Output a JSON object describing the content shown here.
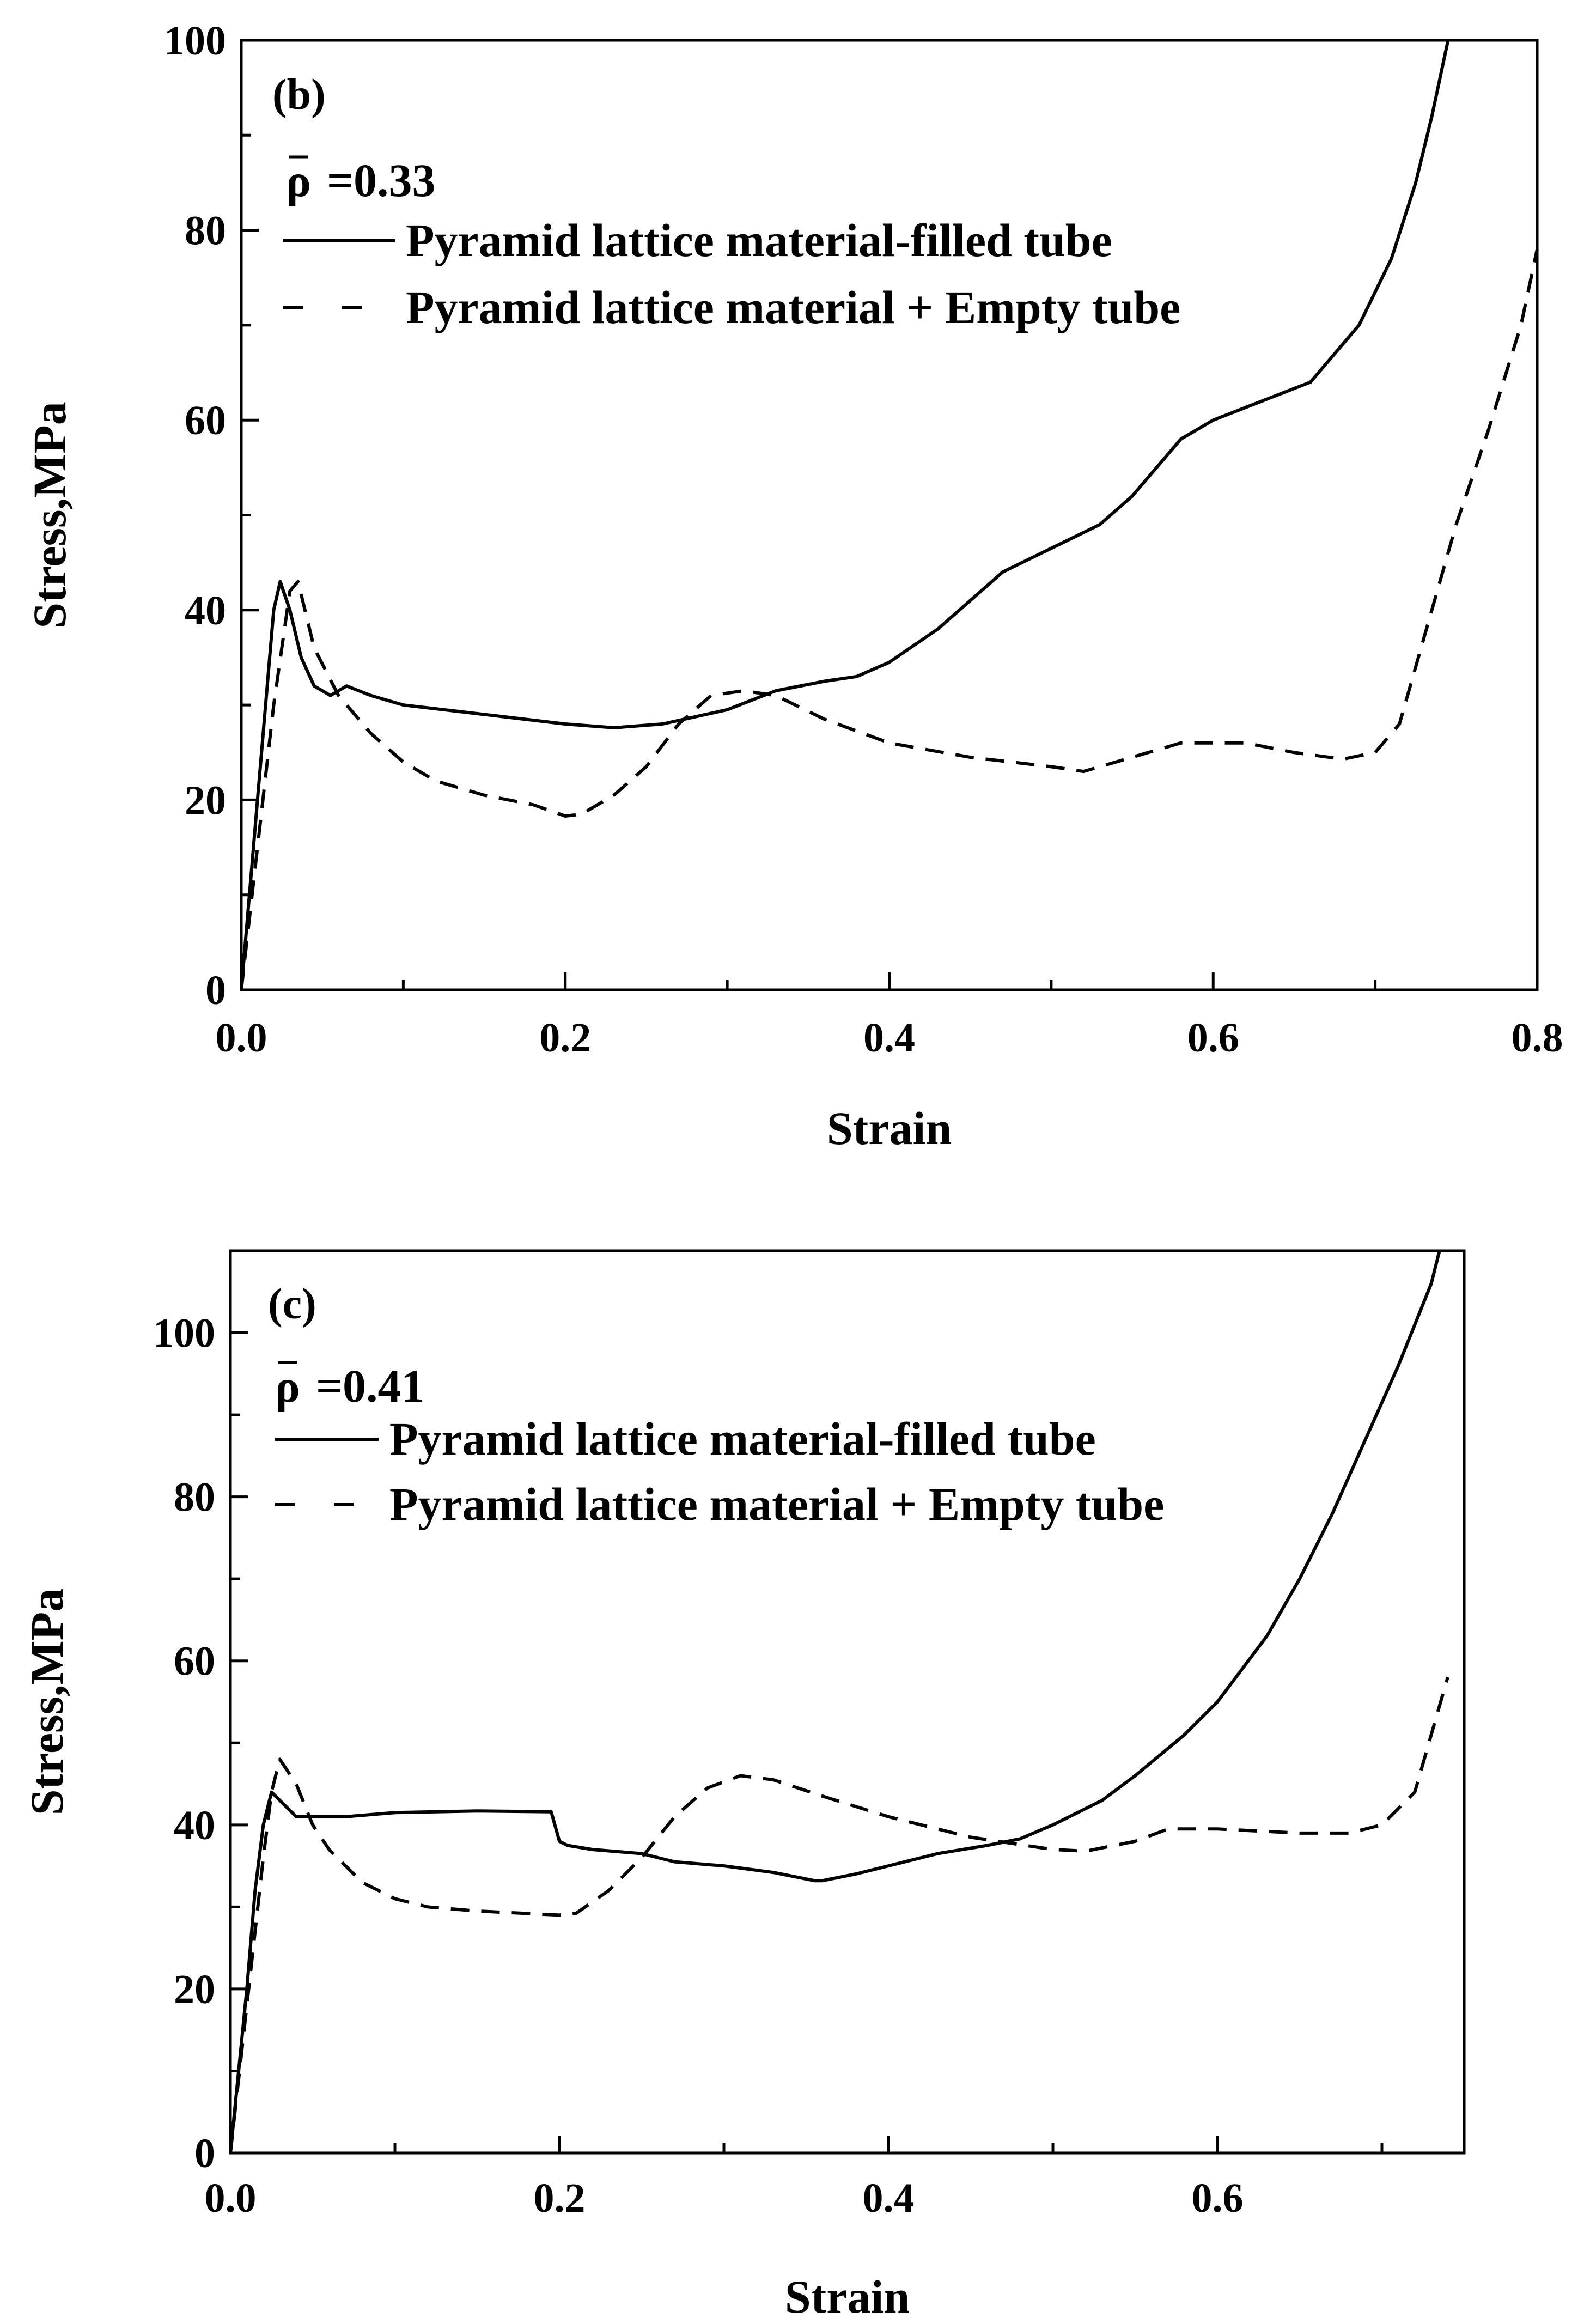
{
  "chart_data": [
    {
      "type": "line",
      "panel_label": "(b)",
      "annotation": {
        "symbol": "ρ",
        "value_text": "=0.33"
      },
      "xlabel": "Strain",
      "ylabel": "Stress,MPa",
      "xlim": [
        0.0,
        0.8
      ],
      "ylim": [
        0,
        100
      ],
      "xticks": [
        "0.0",
        "0.2",
        "0.4",
        "0.6",
        "0.8"
      ],
      "yticks": [
        "0",
        "20",
        "40",
        "60",
        "80",
        "100"
      ],
      "grid": false,
      "legend_position": "top-left",
      "series": [
        {
          "name": "Pyramid lattice material-filled tube",
          "style": "solid",
          "x": [
            0.0,
            0.005,
            0.01,
            0.015,
            0.02,
            0.024,
            0.03,
            0.037,
            0.045,
            0.055,
            0.065,
            0.08,
            0.1,
            0.15,
            0.2,
            0.23,
            0.26,
            0.3,
            0.33,
            0.36,
            0.38,
            0.4,
            0.43,
            0.47,
            0.5,
            0.53,
            0.55,
            0.58,
            0.6,
            0.63,
            0.66,
            0.69,
            0.71,
            0.725,
            0.735,
            0.745
          ],
          "y": [
            0,
            10,
            20,
            30,
            40,
            43,
            40,
            35,
            32,
            31,
            32,
            31,
            30,
            29,
            28,
            27.6,
            28,
            29.5,
            31.5,
            32.5,
            33,
            34.5,
            38,
            44,
            46.5,
            49,
            52,
            58,
            60,
            62,
            64,
            70,
            77,
            85,
            92,
            100
          ]
        },
        {
          "name": "Pyramid lattice material + Empty tube",
          "style": "dashed",
          "x": [
            0.0,
            0.01,
            0.02,
            0.03,
            0.035,
            0.045,
            0.06,
            0.08,
            0.1,
            0.12,
            0.15,
            0.18,
            0.2,
            0.21,
            0.23,
            0.25,
            0.27,
            0.29,
            0.31,
            0.33,
            0.36,
            0.4,
            0.45,
            0.5,
            0.52,
            0.55,
            0.58,
            0.62,
            0.65,
            0.68,
            0.7,
            0.715,
            0.73,
            0.75,
            0.77,
            0.79,
            0.8
          ],
          "y": [
            0,
            15,
            30,
            42,
            43,
            36,
            31,
            27,
            24,
            22,
            20.5,
            19.5,
            18.3,
            18.5,
            20.5,
            23.5,
            28,
            31,
            31.5,
            31,
            28.5,
            26,
            24.5,
            23.5,
            23,
            24.5,
            26,
            26,
            25,
            24.3,
            25,
            28,
            37,
            49,
            59,
            70,
            78
          ]
        }
      ]
    },
    {
      "type": "line",
      "panel_label": "(c)",
      "annotation": {
        "symbol": "ρ",
        "value_text": "=0.41"
      },
      "xlabel": "Strain",
      "ylabel": "Stress,MPa",
      "xlim": [
        0.0,
        0.75
      ],
      "ylim": [
        0,
        110
      ],
      "xticks": [
        "0.0",
        "0.2",
        "0.4",
        "0.6"
      ],
      "yticks": [
        "0",
        "20",
        "40",
        "60",
        "80",
        "100"
      ],
      "grid": false,
      "legend_position": "top-left",
      "series": [
        {
          "name": "Pyramid lattice material-filled tube",
          "style": "solid",
          "x": [
            0.0,
            0.005,
            0.01,
            0.015,
            0.02,
            0.025,
            0.03,
            0.035,
            0.04,
            0.05,
            0.07,
            0.1,
            0.15,
            0.195,
            0.2,
            0.205,
            0.22,
            0.25,
            0.27,
            0.3,
            0.33,
            0.355,
            0.36,
            0.38,
            0.4,
            0.43,
            0.46,
            0.48,
            0.5,
            0.53,
            0.55,
            0.58,
            0.6,
            0.63,
            0.65,
            0.67,
            0.69,
            0.71,
            0.73,
            0.735
          ],
          "y": [
            0,
            10,
            20,
            32,
            40,
            44,
            43,
            42,
            41,
            41,
            41,
            41.5,
            41.7,
            41.6,
            38,
            37.5,
            37,
            36.5,
            35.5,
            35,
            34.2,
            33.2,
            33.2,
            34,
            35,
            36.5,
            37.5,
            38.3,
            40,
            43,
            46,
            51,
            55,
            63,
            70,
            78,
            87,
            96,
            106,
            110
          ]
        },
        {
          "name": "Pyramid lattice material + Empty tube",
          "style": "dashed",
          "x": [
            0.0,
            0.01,
            0.02,
            0.025,
            0.03,
            0.04,
            0.05,
            0.06,
            0.08,
            0.1,
            0.12,
            0.15,
            0.18,
            0.2,
            0.21,
            0.23,
            0.25,
            0.27,
            0.29,
            0.31,
            0.33,
            0.36,
            0.4,
            0.45,
            0.5,
            0.52,
            0.55,
            0.57,
            0.6,
            0.65,
            0.68,
            0.7,
            0.72,
            0.73,
            0.74
          ],
          "y": [
            0,
            18,
            36,
            44,
            48,
            45,
            40,
            37,
            33,
            31,
            30,
            29.5,
            29.2,
            29,
            29.2,
            32,
            36,
            41,
            44.5,
            46,
            45.5,
            43.5,
            41,
            38.5,
            37,
            36.8,
            38,
            39.5,
            39.5,
            39,
            39,
            40,
            44,
            51,
            58
          ]
        }
      ]
    }
  ]
}
